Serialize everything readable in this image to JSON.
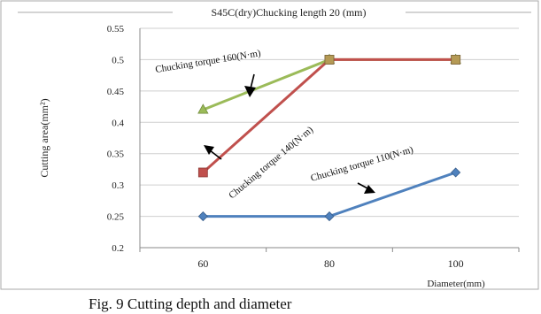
{
  "chart_data": {
    "type": "line",
    "title": "S45C(dry)Chucking    length 20 (mm)",
    "xlabel": "Diameter(mm)",
    "ylabel": "Cutting   area(mm²)",
    "categories": [
      "60",
      "80",
      "100"
    ],
    "ylim": [
      0.2,
      0.55
    ],
    "yticks": [
      "0.2",
      "0.25",
      "0.3",
      "0.35",
      "0.4",
      "0.45",
      "0.5",
      "0.55"
    ],
    "grid": true,
    "legend": "none",
    "series": [
      {
        "name": "Chucking  torque 160(N·m)",
        "values": [
          0.42,
          0.5,
          0.5
        ],
        "color": "#9bbb59",
        "marker": "triangle"
      },
      {
        "name": "Chucking  torque 140(N·m)",
        "values": [
          0.32,
          0.5,
          0.5
        ],
        "color": "#c0504d",
        "marker": "square"
      },
      {
        "name": "Chucking  torque 110(N·m)",
        "values": [
          0.25,
          0.25,
          0.32
        ],
        "color": "#4f81bd",
        "marker": "diamond"
      }
    ],
    "annotations": [
      {
        "text": "Chucking   torque 160(N·m)",
        "series": 0
      },
      {
        "text": "Chucking   torque 140(N·m)",
        "series": 1
      },
      {
        "text": "Chucking   torque 110(N·m)",
        "series": 2
      }
    ]
  },
  "caption": "Fig. 9 Cutting depth and diameter"
}
